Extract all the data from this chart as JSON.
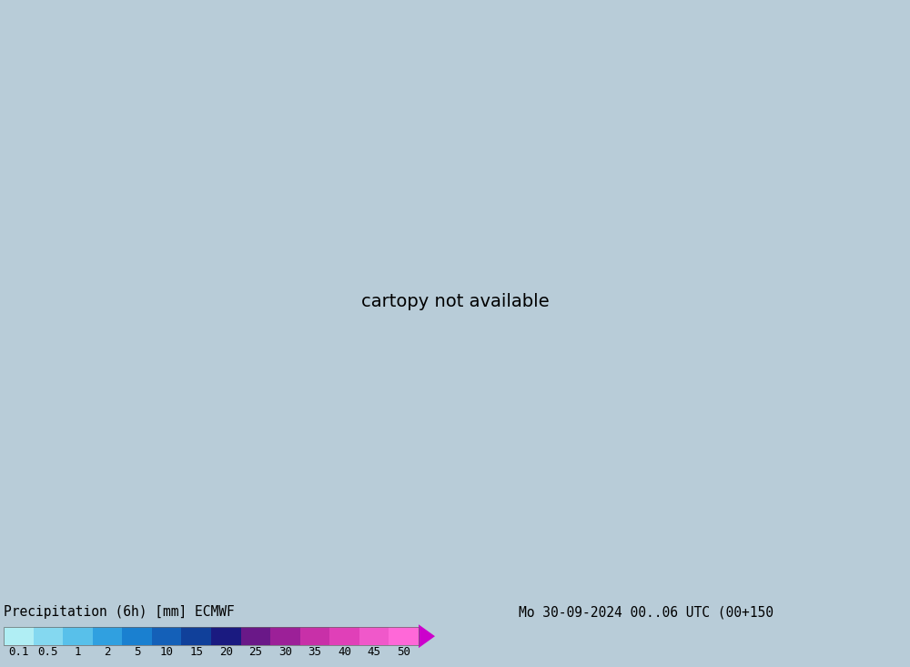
{
  "title_left": "Precipitation (6h) [mm] ECMWF",
  "title_right": "Mo 30-09-2024 00..06 UTC (00+150",
  "colorbar_labels": [
    "0.1",
    "0.5",
    "1",
    "2",
    "5",
    "10",
    "15",
    "20",
    "25",
    "30",
    "35",
    "40",
    "45",
    "50"
  ],
  "colorbar_colors": [
    "#b0eef4",
    "#84d8f0",
    "#58c0ea",
    "#30a0e0",
    "#1a80d0",
    "#1460b8",
    "#10409a",
    "#1a1a80",
    "#6a1888",
    "#9c2098",
    "#c830a8",
    "#e040b8",
    "#f058ca",
    "#ff68d8"
  ],
  "arrow_color": "#cc00cc",
  "fig_bg_color": "#b8ccd8",
  "map_ocean_color": "#c8e4f0",
  "map_land_low_color": "#a8d898",
  "map_land_mid_color": "#90c070",
  "map_land_high_color": "#c8b060",
  "map_mountain_color": "#a09080",
  "label_fontsize": 10,
  "title_fontsize": 10.5,
  "tick_fontsize": 9,
  "fig_width": 10.0,
  "fig_height": 7.33,
  "dpi": 100,
  "extent": [
    -128,
    -60,
    22,
    56
  ],
  "border_color": "#707070",
  "border_linewidth": 0.7
}
